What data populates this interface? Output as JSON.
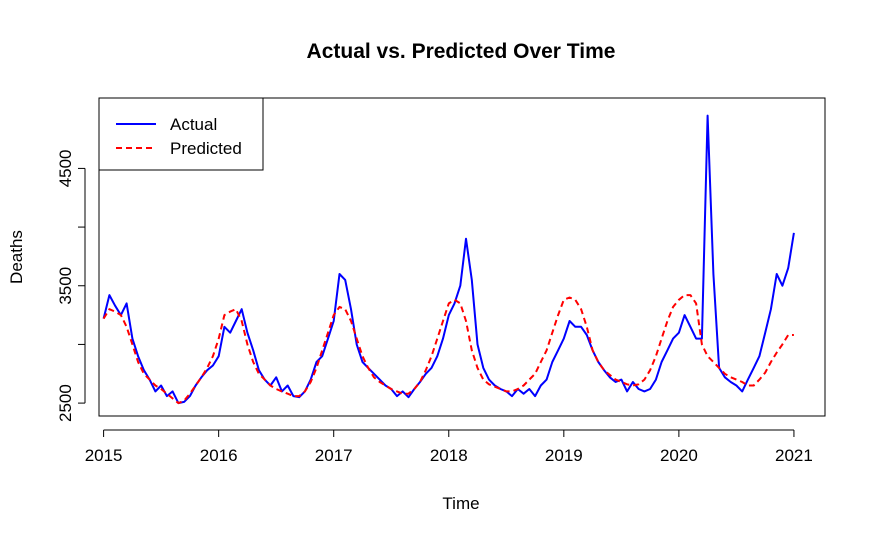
{
  "chart_data": {
    "type": "line",
    "title": "Actual vs. Predicted Over Time",
    "xlabel": "Time",
    "ylabel": "Deaths",
    "xlim": [
      2014.96,
      2021.27
    ],
    "ylim": [
      2390,
      5100
    ],
    "x_ticks": [
      2015,
      2016,
      2017,
      2018,
      2019,
      2020,
      2021
    ],
    "y_ticks": [
      2500,
      3000,
      3500,
      4000,
      4500
    ],
    "y_tick_labels": [
      "2500",
      "",
      "3500",
      "",
      "4500"
    ],
    "grid": false,
    "legend": {
      "position": "top-left",
      "entries": [
        {
          "label": "Actual",
          "color": "#0000ff",
          "style": "solid"
        },
        {
          "label": "Predicted",
          "color": "#ff0000",
          "style": "dashed"
        }
      ]
    },
    "series": [
      {
        "name": "Actual",
        "color": "#0000ff",
        "style": "solid",
        "x": [
          2015.0,
          2015.05,
          2015.1,
          2015.15,
          2015.2,
          2015.25,
          2015.3,
          2015.35,
          2015.4,
          2015.45,
          2015.5,
          2015.55,
          2015.6,
          2015.65,
          2015.7,
          2015.75,
          2015.8,
          2015.85,
          2015.9,
          2015.95,
          2016.0,
          2016.05,
          2016.1,
          2016.15,
          2016.2,
          2016.25,
          2016.3,
          2016.35,
          2016.4,
          2016.45,
          2016.5,
          2016.55,
          2016.6,
          2016.65,
          2016.7,
          2016.75,
          2016.8,
          2016.85,
          2016.9,
          2016.95,
          2017.0,
          2017.05,
          2017.1,
          2017.15,
          2017.2,
          2017.25,
          2017.3,
          2017.35,
          2017.4,
          2017.45,
          2017.5,
          2017.55,
          2017.6,
          2017.65,
          2017.7,
          2017.75,
          2017.8,
          2017.85,
          2017.9,
          2017.95,
          2018.0,
          2018.05,
          2018.1,
          2018.15,
          2018.2,
          2018.25,
          2018.3,
          2018.35,
          2018.4,
          2018.45,
          2018.5,
          2018.55,
          2018.6,
          2018.65,
          2018.7,
          2018.75,
          2018.8,
          2018.85,
          2018.9,
          2018.95,
          2019.0,
          2019.05,
          2019.1,
          2019.15,
          2019.2,
          2019.25,
          2019.3,
          2019.35,
          2019.4,
          2019.45,
          2019.5,
          2019.55,
          2019.6,
          2019.65,
          2019.7,
          2019.75,
          2019.8,
          2019.85,
          2019.9,
          2019.95,
          2020.0,
          2020.05,
          2020.1,
          2020.15,
          2020.2,
          2020.25,
          2020.3,
          2020.35,
          2020.4,
          2020.45,
          2020.5,
          2020.55,
          2020.6,
          2020.65,
          2020.7,
          2020.75,
          2020.8,
          2020.85,
          2020.9,
          2020.95,
          2021.0
        ],
        "y": [
          3220,
          3420,
          3330,
          3250,
          3350,
          3050,
          2900,
          2780,
          2700,
          2600,
          2650,
          2560,
          2600,
          2500,
          2510,
          2560,
          2650,
          2720,
          2780,
          2820,
          2900,
          3150,
          3100,
          3200,
          3300,
          3100,
          2950,
          2780,
          2700,
          2650,
          2720,
          2600,
          2650,
          2560,
          2550,
          2600,
          2700,
          2850,
          2900,
          3050,
          3200,
          3600,
          3550,
          3300,
          3000,
          2850,
          2800,
          2750,
          2700,
          2650,
          2620,
          2560,
          2600,
          2550,
          2620,
          2680,
          2750,
          2800,
          2900,
          3050,
          3250,
          3350,
          3500,
          3900,
          3550,
          3000,
          2800,
          2700,
          2650,
          2620,
          2600,
          2560,
          2620,
          2580,
          2620,
          2560,
          2650,
          2700,
          2850,
          2950,
          3050,
          3200,
          3150,
          3150,
          3080,
          2950,
          2850,
          2780,
          2720,
          2680,
          2700,
          2600,
          2680,
          2620,
          2600,
          2620,
          2700,
          2850,
          2950,
          3050,
          3100,
          3250,
          3150,
          3050,
          3050,
          4950,
          3600,
          2800,
          2720,
          2680,
          2650,
          2600,
          2700,
          2800,
          2900,
          3100,
          3300,
          3600,
          3500,
          3650,
          3950
        ]
      },
      {
        "name": "Predicted",
        "color": "#ff0000",
        "style": "dashed",
        "x": [
          2015.0,
          2015.05,
          2015.1,
          2015.15,
          2015.2,
          2015.25,
          2015.3,
          2015.35,
          2015.4,
          2015.45,
          2015.5,
          2015.55,
          2015.6,
          2015.65,
          2015.7,
          2015.75,
          2015.8,
          2015.85,
          2015.9,
          2015.95,
          2016.0,
          2016.05,
          2016.1,
          2016.15,
          2016.2,
          2016.25,
          2016.3,
          2016.35,
          2016.4,
          2016.45,
          2016.5,
          2016.55,
          2016.6,
          2016.65,
          2016.7,
          2016.75,
          2016.8,
          2016.85,
          2016.9,
          2016.95,
          2017.0,
          2017.05,
          2017.1,
          2017.15,
          2017.2,
          2017.25,
          2017.3,
          2017.35,
          2017.4,
          2017.45,
          2017.5,
          2017.55,
          2017.6,
          2017.65,
          2017.7,
          2017.75,
          2017.8,
          2017.85,
          2017.9,
          2017.95,
          2018.0,
          2018.05,
          2018.1,
          2018.15,
          2018.2,
          2018.25,
          2018.3,
          2018.35,
          2018.4,
          2018.45,
          2018.5,
          2018.55,
          2018.6,
          2018.65,
          2018.7,
          2018.75,
          2018.8,
          2018.85,
          2018.9,
          2018.95,
          2019.0,
          2019.05,
          2019.1,
          2019.15,
          2019.2,
          2019.25,
          2019.3,
          2019.35,
          2019.4,
          2019.45,
          2019.5,
          2019.55,
          2019.6,
          2019.65,
          2019.7,
          2019.75,
          2019.8,
          2019.85,
          2019.9,
          2019.95,
          2020.0,
          2020.05,
          2020.1,
          2020.15,
          2020.2,
          2020.25,
          2020.3,
          2020.35,
          2020.4,
          2020.45,
          2020.5,
          2020.55,
          2020.6,
          2020.65,
          2020.7,
          2020.75,
          2020.8,
          2020.85,
          2020.9,
          2020.95,
          2021.0
        ],
        "y": [
          3220,
          3300,
          3280,
          3250,
          3150,
          3000,
          2850,
          2750,
          2700,
          2650,
          2620,
          2580,
          2540,
          2500,
          2520,
          2580,
          2650,
          2720,
          2800,
          2900,
          3050,
          3250,
          3280,
          3300,
          3200,
          3000,
          2850,
          2750,
          2700,
          2650,
          2620,
          2600,
          2580,
          2560,
          2560,
          2600,
          2680,
          2800,
          2950,
          3100,
          3250,
          3320,
          3300,
          3200,
          3050,
          2900,
          2800,
          2720,
          2680,
          2650,
          2620,
          2600,
          2580,
          2580,
          2620,
          2680,
          2780,
          2900,
          3050,
          3200,
          3350,
          3380,
          3350,
          3200,
          2950,
          2800,
          2700,
          2660,
          2640,
          2620,
          2600,
          2600,
          2620,
          2650,
          2700,
          2750,
          2850,
          2950,
          3100,
          3250,
          3380,
          3400,
          3380,
          3300,
          3150,
          2950,
          2850,
          2780,
          2740,
          2700,
          2680,
          2660,
          2650,
          2660,
          2700,
          2780,
          2900,
          3050,
          3200,
          3320,
          3380,
          3420,
          3420,
          3350,
          3000,
          2900,
          2850,
          2800,
          2750,
          2720,
          2700,
          2680,
          2650,
          2650,
          2700,
          2760,
          2850,
          2930,
          3000,
          3080,
          3080
        ]
      }
    ]
  }
}
